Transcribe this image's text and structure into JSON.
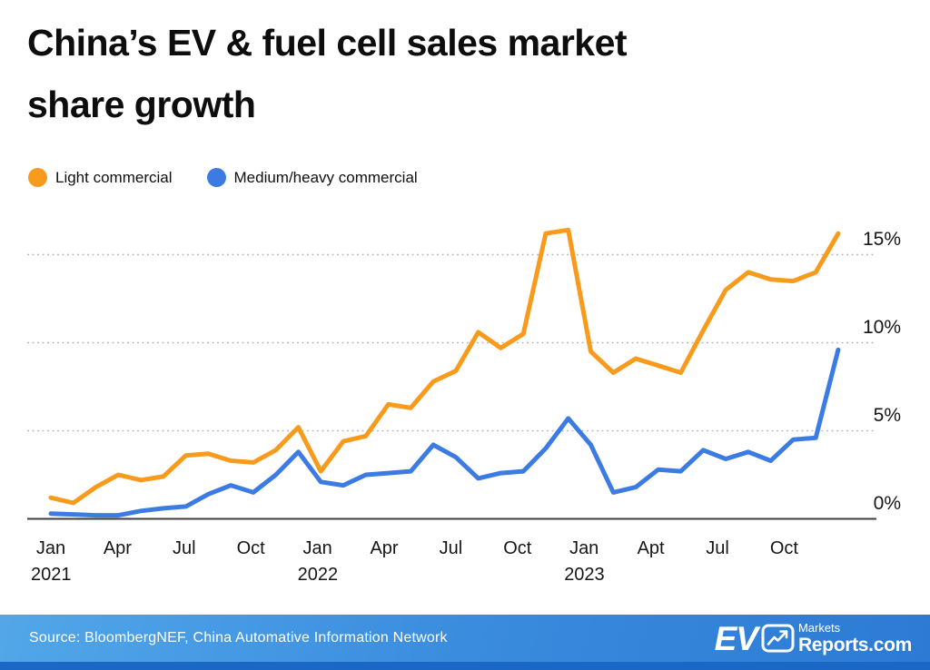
{
  "header": {
    "title_line1": "China’s EV & fuel cell sales market",
    "title_line2": "share growth"
  },
  "chart_data": {
    "type": "line",
    "title": "China’s EV & fuel cell sales market share growth",
    "x_range_months": [
      "Jan 2021",
      "Dec 2023"
    ],
    "months_per_tick": 3,
    "x_ticks": [
      {
        "month": "Jan",
        "year": "2021"
      },
      {
        "month": "Apr"
      },
      {
        "month": "Jul"
      },
      {
        "month": "Oct"
      },
      {
        "month": "Jan",
        "year": "2022"
      },
      {
        "month": "Apr"
      },
      {
        "month": "Jul"
      },
      {
        "month": "Oct"
      },
      {
        "month": "Jan",
        "year": "2023"
      },
      {
        "month": "Apt"
      },
      {
        "month": "Jul"
      },
      {
        "month": "Oct"
      }
    ],
    "y_ticks": [
      {
        "label": "15%",
        "value": 15
      },
      {
        "label": "10%",
        "value": 10
      },
      {
        "label": "5%",
        "value": 5
      },
      {
        "label": "0%",
        "value": 0
      }
    ],
    "y_grid_values": [
      5,
      10,
      15
    ],
    "ylim": [
      0,
      17
    ],
    "grid": "dotted horizontal lines, solid baseline at 0%",
    "legend_position": "top-left",
    "series": [
      {
        "name": "Light commercial",
        "color": "#F89B1C",
        "values": [
          1.2,
          0.9,
          1.8,
          2.5,
          2.2,
          2.4,
          3.6,
          3.7,
          3.3,
          3.2,
          3.9,
          5.2,
          2.7,
          4.4,
          4.7,
          6.5,
          6.3,
          7.8,
          8.4,
          10.6,
          9.7,
          10.5,
          16.2,
          16.4,
          9.5,
          8.3,
          9.1,
          8.7,
          8.3,
          10.7,
          13.0,
          14.0,
          13.6,
          13.5,
          14.0,
          16.2
        ]
      },
      {
        "name": "Medium/heavy commercial",
        "color": "#3C7CE2",
        "values": [
          0.3,
          0.25,
          0.2,
          0.2,
          0.45,
          0.6,
          0.7,
          1.4,
          1.9,
          1.5,
          2.5,
          3.8,
          2.1,
          1.9,
          2.5,
          2.6,
          2.7,
          4.2,
          3.5,
          2.3,
          2.6,
          2.7,
          4.0,
          5.7,
          4.2,
          1.5,
          1.8,
          2.8,
          2.7,
          3.9,
          3.4,
          3.8,
          3.3,
          4.5,
          4.6,
          9.6
        ]
      }
    ]
  },
  "footer": {
    "source": "Source: BloombergNEF, China Automative Information Network",
    "logo": {
      "ev": "EV",
      "markets": "Markets",
      "reports": "Reports.com"
    }
  },
  "colors": {
    "accent_orange": "#F89B1C",
    "accent_blue": "#3C7CE2",
    "title_text": "#0D0D0D",
    "grid": "#BBBBBB",
    "axis": "#3C3C3C",
    "footer_gradient_start": "#52A7E9",
    "footer_gradient_mid": "#3A8CDE",
    "footer_gradient_end": "#2C7AD4",
    "footer_stripe": "#1B67C6"
  }
}
